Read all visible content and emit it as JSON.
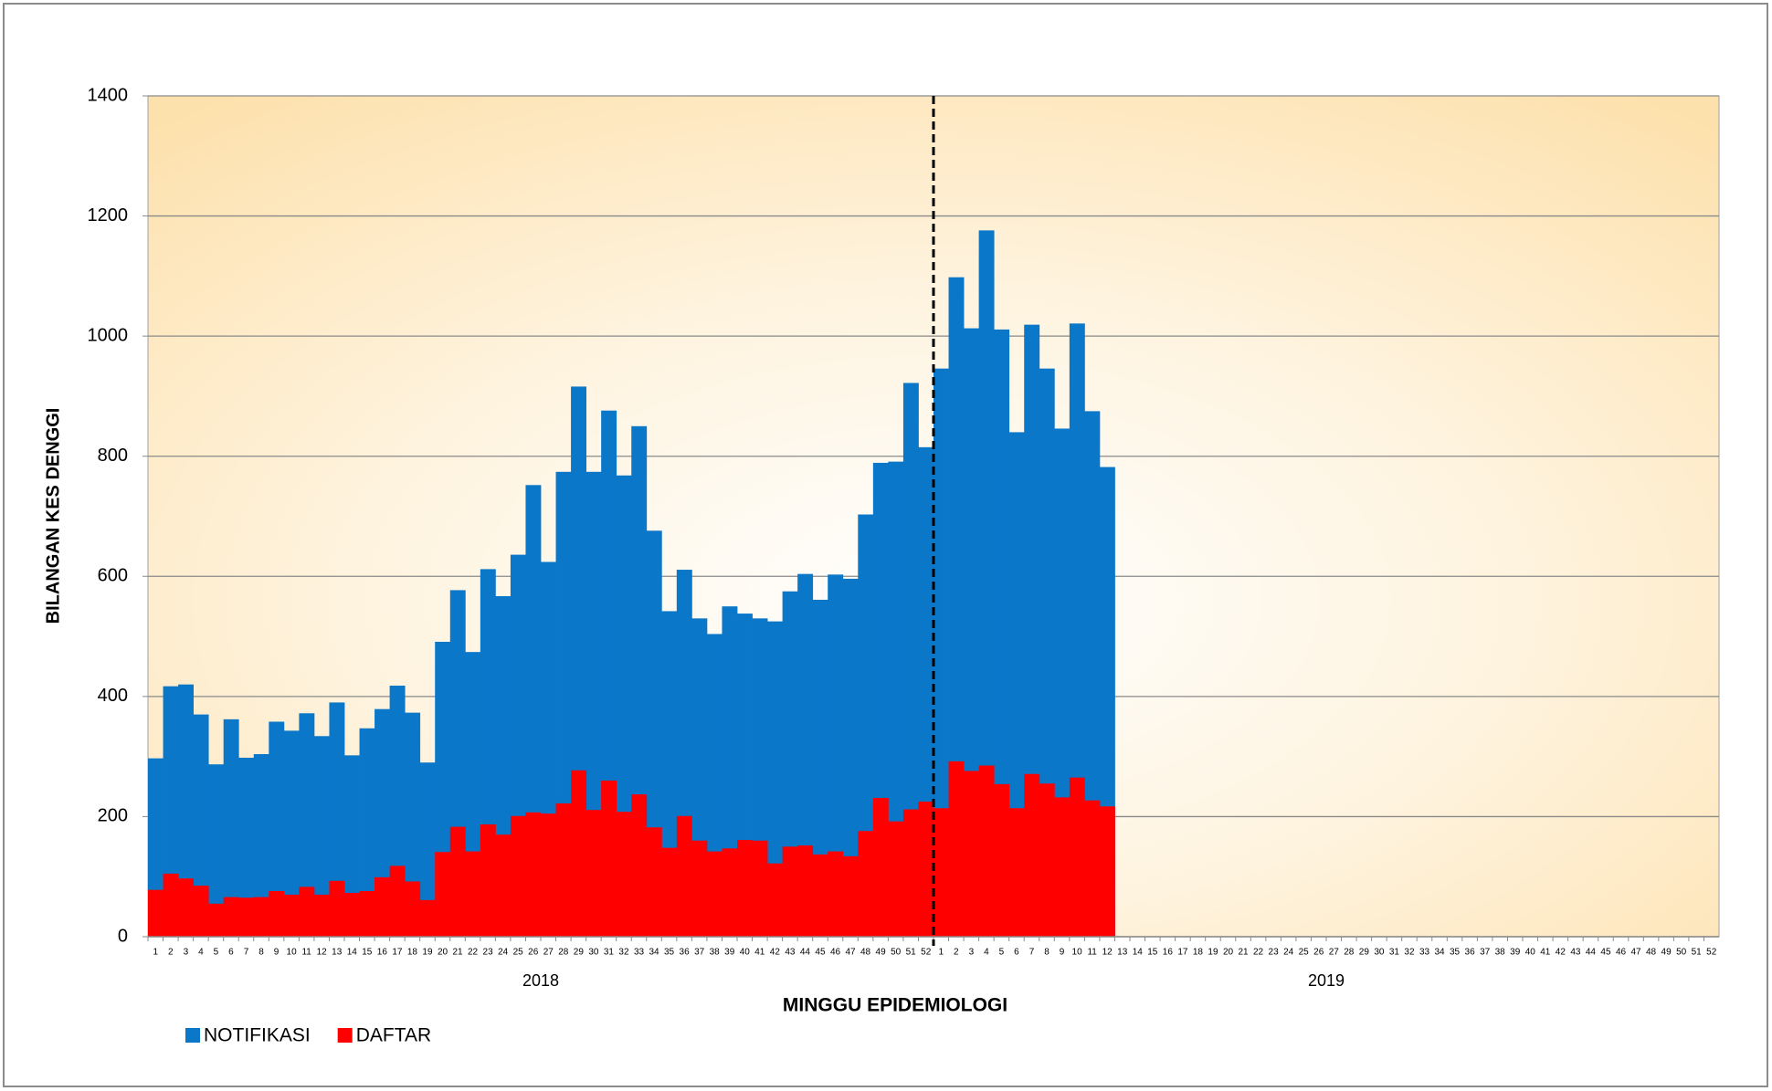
{
  "chart_data": {
    "type": "bar",
    "y_axis_label": "BILANGAN KES DENGGI",
    "x_axis_label": "MINGGU EPIDEMIOLOGI",
    "category_groups": [
      "2018",
      "2019"
    ],
    "categories": [
      "1",
      "2",
      "3",
      "4",
      "5",
      "6",
      "7",
      "8",
      "9",
      "10",
      "11",
      "12",
      "13",
      "14",
      "15",
      "16",
      "17",
      "18",
      "19",
      "20",
      "21",
      "22",
      "23",
      "24",
      "25",
      "26",
      "27",
      "28",
      "29",
      "30",
      "31",
      "32",
      "33",
      "34",
      "35",
      "36",
      "37",
      "38",
      "39",
      "40",
      "41",
      "42",
      "43",
      "44",
      "45",
      "46",
      "47",
      "48",
      "49",
      "50",
      "51",
      "52",
      "1",
      "2",
      "3",
      "4",
      "5",
      "6",
      "7",
      "8",
      "9",
      "10",
      "11",
      "12",
      "13",
      "14",
      "15",
      "16",
      "17",
      "18",
      "19",
      "20",
      "21",
      "22",
      "23",
      "24",
      "25",
      "26",
      "27",
      "28",
      "29",
      "30",
      "31",
      "32",
      "33",
      "34",
      "35",
      "36",
      "37",
      "38",
      "39",
      "40",
      "41",
      "42",
      "43",
      "44",
      "45",
      "46",
      "47",
      "48",
      "49",
      "50",
      "51",
      "52"
    ],
    "series": [
      {
        "name": "NOTIFIKASI",
        "color": "#0b77c9",
        "values": [
          297,
          417,
          420,
          370,
          287,
          362,
          298,
          304,
          358,
          343,
          372,
          334,
          390,
          302,
          347,
          379,
          418,
          373,
          290,
          491,
          577,
          474,
          612,
          567,
          636,
          752,
          624,
          774,
          916,
          774,
          876,
          768,
          850,
          676,
          542,
          611,
          530,
          504,
          550,
          538,
          530,
          525,
          575,
          604,
          561,
          603,
          596,
          703,
          789,
          791,
          922,
          815,
          946,
          1098,
          1013,
          1176,
          1011,
          840,
          1019,
          946,
          846,
          1021,
          875,
          782,
          null,
          null,
          null,
          null,
          null,
          null,
          null,
          null,
          null,
          null,
          null,
          null,
          null,
          null,
          null,
          null,
          null,
          null,
          null,
          null,
          null,
          null,
          null,
          null,
          null,
          null,
          null,
          null,
          null,
          null,
          null,
          null,
          null,
          null,
          null,
          null,
          null,
          null,
          null,
          null
        ]
      },
      {
        "name": "DAFTAR",
        "color": "#ff0000",
        "values": [
          78,
          105,
          97,
          85,
          55,
          66,
          65,
          66,
          76,
          70,
          83,
          70,
          93,
          73,
          76,
          99,
          118,
          92,
          61,
          141,
          183,
          142,
          187,
          170,
          201,
          207,
          205,
          222,
          277,
          211,
          260,
          208,
          237,
          182,
          148,
          201,
          160,
          142,
          147,
          161,
          160,
          122,
          150,
          152,
          137,
          142,
          134,
          176,
          231,
          192,
          212,
          225,
          214,
          292,
          276,
          285,
          254,
          214,
          271,
          255,
          232,
          265,
          227,
          217,
          null,
          null,
          null,
          null,
          null,
          null,
          null,
          null,
          null,
          null,
          null,
          null,
          null,
          null,
          null,
          null,
          null,
          null,
          null,
          null,
          null,
          null,
          null,
          null,
          null,
          null,
          null,
          null,
          null,
          null,
          null,
          null,
          null,
          null,
          null,
          null,
          null,
          null,
          null,
          null
        ]
      }
    ],
    "stacked": false,
    "ylim": [
      0,
      1400
    ],
    "yticks": [
      0,
      200,
      400,
      600,
      800,
      1000,
      1200,
      1400
    ],
    "grid": true,
    "legend": "bottom-left"
  }
}
